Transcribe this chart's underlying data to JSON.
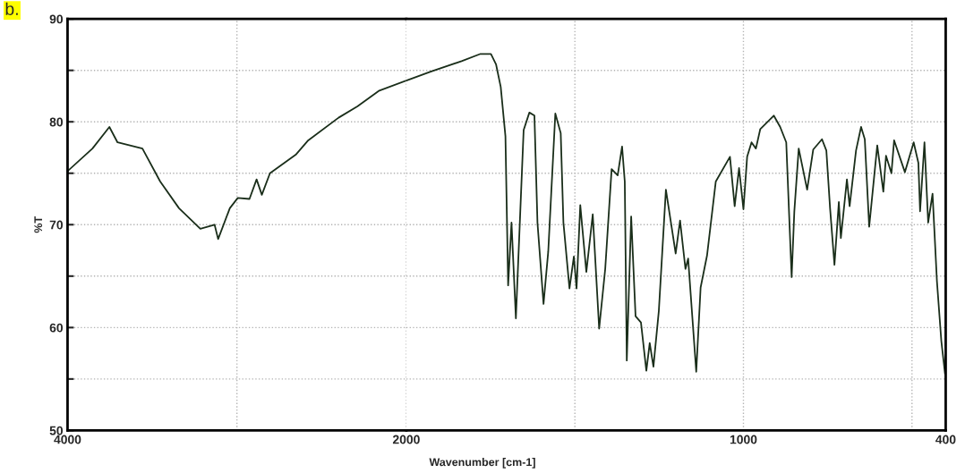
{
  "chart_data": [
    {
      "type": "line",
      "title": "b.",
      "ylabel": "%T",
      "xlim": [
        4000,
        2000
      ],
      "xticks": [
        4000,
        {
          "value": 3000,
          "label": null
        },
        2000
      ],
      "ylim": [
        50,
        90
      ],
      "yticks": [
        50,
        {
          "value": 55,
          "label": null
        },
        60,
        {
          "value": 65,
          "label": null
        },
        70,
        {
          "value": 75,
          "label": null
        },
        80,
        {
          "value": 85,
          "label": null
        },
        90
      ],
      "grid": true,
      "marker": "none",
      "line_style": "solid",
      "x": [
        4000,
        3853,
        3753,
        3705,
        3558,
        3453,
        3342,
        3216,
        3132,
        3111,
        3042,
        2995,
        2926,
        2884,
        2853,
        2805,
        2653,
        2579,
        2400,
        2289,
        2163,
        2000
      ],
      "series": [
        {
          "color": "#1a2e1a",
          "values": [
            75.2,
            77.4,
            79.5,
            78.0,
            77.4,
            74.2,
            71.6,
            69.6,
            70.0,
            68.6,
            71.6,
            72.6,
            72.5,
            74.4,
            72.9,
            75.0,
            76.8,
            78.2,
            80.4,
            81.5,
            83.0,
            84.0
          ]
        }
      ]
    },
    {
      "type": "line",
      "xlabel": "Wavenumber [cm-1]",
      "tick_labels": "x",
      "xlim": [
        2000,
        400
      ],
      "xticks": [
        {
          "value": 1500,
          "label": null
        },
        1000,
        {
          "value": 500,
          "label": null
        },
        400
      ],
      "ylim": [
        50,
        90
      ],
      "yticks": [
        50,
        {
          "value": 55,
          "label": null
        },
        60,
        {
          "value": 65,
          "label": null
        },
        70,
        {
          "value": 75,
          "label": null
        },
        80,
        {
          "value": 85,
          "label": null
        },
        90
      ],
      "grid": true,
      "marker": "none",
      "line_style": "solid",
      "x": [
        2000,
        1926,
        1836,
        1780,
        1749,
        1734,
        1720,
        1706,
        1698,
        1688,
        1675,
        1652,
        1635,
        1620,
        1611,
        1593,
        1579,
        1558,
        1542,
        1534,
        1516,
        1503,
        1495,
        1484,
        1466,
        1447,
        1428,
        1410,
        1391,
        1373,
        1360,
        1352,
        1346,
        1333,
        1320,
        1304,
        1288,
        1278,
        1267,
        1251,
        1230,
        1201,
        1188,
        1172,
        1164,
        1140,
        1127,
        1108,
        1082,
        1040,
        1026,
        1013,
        1000,
        989,
        976,
        963,
        950,
        910,
        891,
        873,
        857,
        849,
        836,
        811,
        793,
        767,
        754,
        743,
        730,
        717,
        711,
        693,
        685,
        666,
        651,
        640,
        627,
        603,
        585,
        577,
        561,
        553,
        521,
        495,
        481,
        476,
        463,
        452,
        439,
        426,
        413,
        402
      ],
      "series": [
        {
          "color": "#1a2e1a",
          "values": [
            84.0,
            84.9,
            85.9,
            86.6,
            86.6,
            85.6,
            83.4,
            78.6,
            64.1,
            70.2,
            60.9,
            79.2,
            80.9,
            80.6,
            70.2,
            62.3,
            67.4,
            80.8,
            78.9,
            70.2,
            63.8,
            66.9,
            63.8,
            71.9,
            65.4,
            71.0,
            59.9,
            65.7,
            75.4,
            74.8,
            77.6,
            74.2,
            56.8,
            70.8,
            61.1,
            60.5,
            55.8,
            58.5,
            56.2,
            61.6,
            73.4,
            67.2,
            70.4,
            65.7,
            66.7,
            55.7,
            63.9,
            67.0,
            74.2,
            76.6,
            71.8,
            75.5,
            71.5,
            76.6,
            78.0,
            77.4,
            79.3,
            80.6,
            79.5,
            78.0,
            64.9,
            71.3,
            77.4,
            73.4,
            77.3,
            78.3,
            77.2,
            71.6,
            66.1,
            72.2,
            68.7,
            74.4,
            71.8,
            77.2,
            79.5,
            78.3,
            69.8,
            77.7,
            73.2,
            76.7,
            75.0,
            78.2,
            75.1,
            78.0,
            76.0,
            71.3,
            78.0,
            70.2,
            73.0,
            64.5,
            58.7,
            55.5
          ]
        }
      ]
    }
  ]
}
